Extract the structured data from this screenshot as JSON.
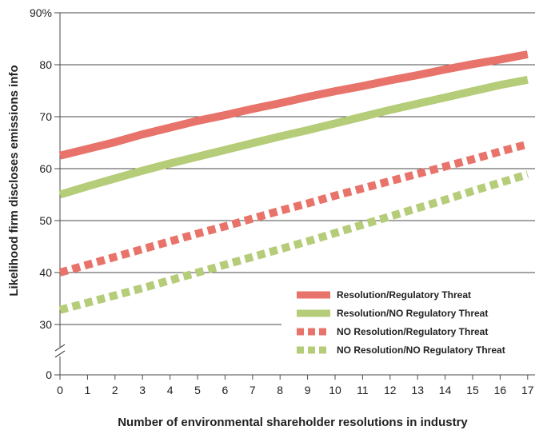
{
  "chart_data": {
    "type": "line",
    "title": "",
    "xlabel": "Number of environmental shareholder resolutions in industry",
    "ylabel": "Likelihood firm discloses emissions info",
    "x": [
      0,
      1,
      2,
      3,
      4,
      5,
      6,
      7,
      8,
      9,
      10,
      11,
      12,
      13,
      14,
      15,
      16,
      17
    ],
    "x_ticks": [
      "0",
      "1",
      "2",
      "3",
      "4",
      "5",
      "6",
      "7",
      "8",
      "9",
      "10",
      "11",
      "12",
      "13",
      "14",
      "15",
      "16",
      "17"
    ],
    "y_ticks": [
      {
        "value": 0,
        "label": "0"
      },
      {
        "value": 30,
        "label": "30"
      },
      {
        "value": 40,
        "label": "40"
      },
      {
        "value": 50,
        "label": "50"
      },
      {
        "value": 60,
        "label": "60"
      },
      {
        "value": 70,
        "label": "70"
      },
      {
        "value": 80,
        "label": "80"
      },
      {
        "value": 90,
        "label": "90%"
      }
    ],
    "y_axis_break": true,
    "grid": true,
    "legend_position": "bottom-right",
    "series": [
      {
        "name": "Resolution/Regulatory Threat",
        "color": "#e8736a",
        "dashed": false,
        "values": [
          62.5,
          63.8,
          65.1,
          66.6,
          67.9,
          69.2,
          70.3,
          71.5,
          72.6,
          73.8,
          74.9,
          75.9,
          77.0,
          78.0,
          79.1,
          80.1,
          81.0,
          82.0
        ]
      },
      {
        "name": "Resolution/NO Regulatory Threat",
        "color": "#b5cc79",
        "dashed": false,
        "values": [
          55.0,
          56.6,
          58.1,
          59.6,
          61.0,
          62.3,
          63.6,
          64.9,
          66.2,
          67.4,
          68.7,
          70.0,
          71.3,
          72.5,
          73.7,
          74.9,
          76.1,
          77.1
        ]
      },
      {
        "name": "NO Resolution/Regulatory Threat",
        "color": "#e8736a",
        "dashed": true,
        "values": [
          40.0,
          41.5,
          43.0,
          44.5,
          46.0,
          47.5,
          48.9,
          50.4,
          51.9,
          53.3,
          54.8,
          56.2,
          57.6,
          59.0,
          60.4,
          61.8,
          63.3,
          64.7
        ]
      },
      {
        "name": "NO Resolution/NO Regulatory Threat",
        "color": "#b5cc79",
        "dashed": true,
        "values": [
          32.8,
          34.2,
          35.6,
          37.0,
          38.5,
          40.0,
          41.5,
          43.0,
          44.5,
          46.0,
          47.6,
          49.2,
          50.8,
          52.4,
          54.0,
          55.7,
          57.3,
          58.9
        ]
      }
    ]
  }
}
